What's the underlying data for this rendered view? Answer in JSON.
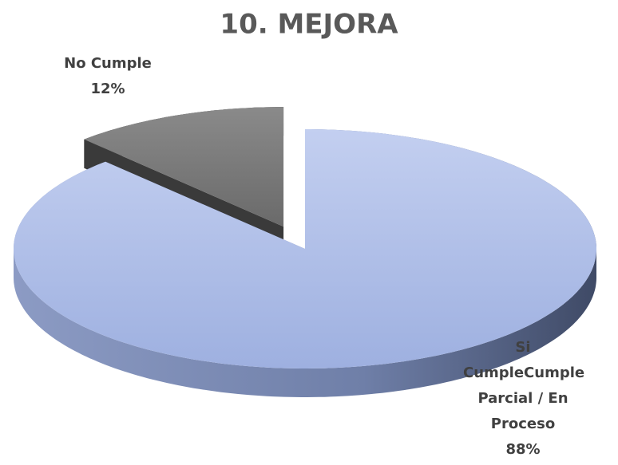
{
  "chart_data": {
    "type": "pie",
    "title": "10. MEJORA",
    "categories": [
      "Si CumpleCumple Parcial / En Proceso",
      "No Cumple"
    ],
    "values": [
      88,
      12
    ],
    "value_labels": [
      "88%",
      "12%"
    ],
    "colors": [
      "#b3c2ea",
      "#7f7f7f"
    ]
  }
}
